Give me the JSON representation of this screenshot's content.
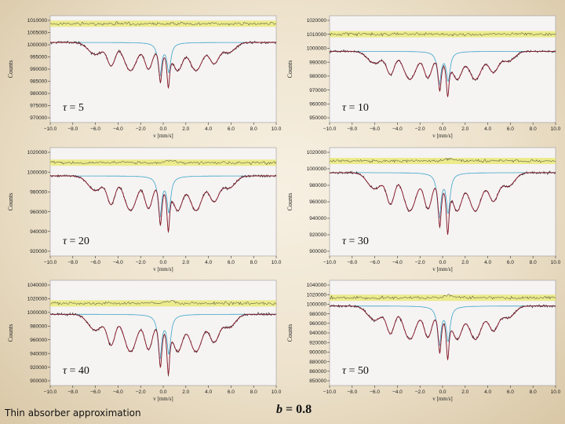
{
  "footer": {
    "caption": "Thin absorber approximation",
    "b_symbol": "b",
    "b_value": " = 0.8"
  },
  "colors": {
    "panel_bg": "#f6f3f3",
    "data": "#222222",
    "fit": "#8b1a2a",
    "component": "#3aa6c8",
    "residual_band": "#e8e86a"
  },
  "chart_data": [
    {
      "type": "line",
      "tau_symbol": "τ",
      "tau_value": "5",
      "xlabel": "v [mm/s]",
      "ylabel": "Counts",
      "xlim": [
        -10,
        10
      ],
      "ylim": [
        970000,
        1010000
      ],
      "xticks": [
        "−10.0",
        "−8.0",
        "−6.0",
        "−4.0",
        "−2.0",
        "0.0",
        "2.0",
        "4.0",
        "6.0",
        "8.0",
        "10.0"
      ],
      "yticks": [
        "1010000",
        "1000000",
        "990000",
        "980000",
        "970000"
      ],
      "yticks_top": [
        "1010000",
        "1005000",
        "1000000",
        "995000",
        "990000",
        "985000",
        "980000",
        "975000",
        "970000"
      ],
      "baseline": 1000000,
      "residual_level": 1007000,
      "depth": 15000
    },
    {
      "type": "line",
      "tau_symbol": "τ",
      "tau_value": "10",
      "xlabel": "v [mm/s]",
      "ylabel": "Counts",
      "xlim": [
        -10,
        10
      ],
      "ylim": [
        950000,
        1025000
      ],
      "xticks": [
        "−10.0",
        "−8.0",
        "−6.0",
        "−4.0",
        "−2.0",
        "0.0",
        "2.0",
        "4.0",
        "6.0",
        "8.0",
        "10.0"
      ],
      "yticks": [
        "1020000",
        "1010000",
        "1000000",
        "990000",
        "980000",
        "970000",
        "960000",
        "950000"
      ],
      "baseline": 1000000,
      "residual_level": 1012000,
      "depth": 28000
    },
    {
      "type": "line",
      "tau_symbol": "τ",
      "tau_value": "20",
      "xlabel": "v [mm/s]",
      "ylabel": "Counts",
      "xlim": [
        -10,
        10
      ],
      "ylim": [
        915000,
        1030000
      ],
      "xticks": [
        "−10.0",
        "−8.0",
        "−6.0",
        "−4.0",
        "−2.0",
        "0.0",
        "2.0",
        "4.0",
        "6.0",
        "8.0",
        "10.0"
      ],
      "yticks": [
        "1020000",
        "1000000",
        "980000",
        "960000",
        "940000",
        "920000"
      ],
      "baseline": 1000000,
      "residual_level": 1014000,
      "depth": 52000
    },
    {
      "type": "line",
      "tau_symbol": "τ",
      "tau_value": "30",
      "xlabel": "v [mm/s]",
      "ylabel": "Counts",
      "xlim": [
        -10,
        10
      ],
      "ylim": [
        900000,
        1030000
      ],
      "xticks": [
        "−10.0",
        "−8.0",
        "−6.0",
        "−4.0",
        "−2.0",
        "0.0",
        "2.0",
        "4.0",
        "6.0",
        "8.0",
        "10.0"
      ],
      "yticks": [
        "1020000",
        "1000000",
        "980000",
        "960000",
        "940000",
        "920000",
        "900000"
      ],
      "baseline": 1000000,
      "residual_level": 1014000,
      "depth": 65000
    },
    {
      "type": "line",
      "tau_symbol": "τ",
      "tau_value": "40",
      "xlabel": "v [mm/s]",
      "ylabel": "Counts",
      "xlim": [
        -10,
        10
      ],
      "ylim": [
        895000,
        1050000
      ],
      "xticks": [
        "−10.0",
        "−8.0",
        "−6.0",
        "−4.0",
        "−2.0",
        "0.0",
        "2.0",
        "4.0",
        "6.0",
        "8.0",
        "10.0"
      ],
      "yticks": [
        "1040000",
        "1020000",
        "1000000",
        "980000",
        "960000",
        "940000",
        "920000",
        "900000"
      ],
      "baseline": 1000000,
      "residual_level": 1016000,
      "depth": 78000
    },
    {
      "type": "line",
      "tau_symbol": "τ",
      "tau_value": "50",
      "xlabel": "v [mm/s]",
      "ylabel": "Counts",
      "xlim": [
        -10,
        10
      ],
      "ylim": [
        845000,
        1050000
      ],
      "xticks": [
        "−10.0",
        "−8.0",
        "−6.0",
        "−4.0",
        "−2.0",
        "0.0",
        "2.0",
        "4.0",
        "6.0",
        "8.0",
        "10.0"
      ],
      "yticks": [
        "1040000",
        "1020000",
        "1000000",
        "980000",
        "960000",
        "940000",
        "920000",
        "900000",
        "880000",
        "860000",
        "850000"
      ],
      "baseline": 1000000,
      "residual_level": 1016000,
      "depth": 92000
    }
  ]
}
